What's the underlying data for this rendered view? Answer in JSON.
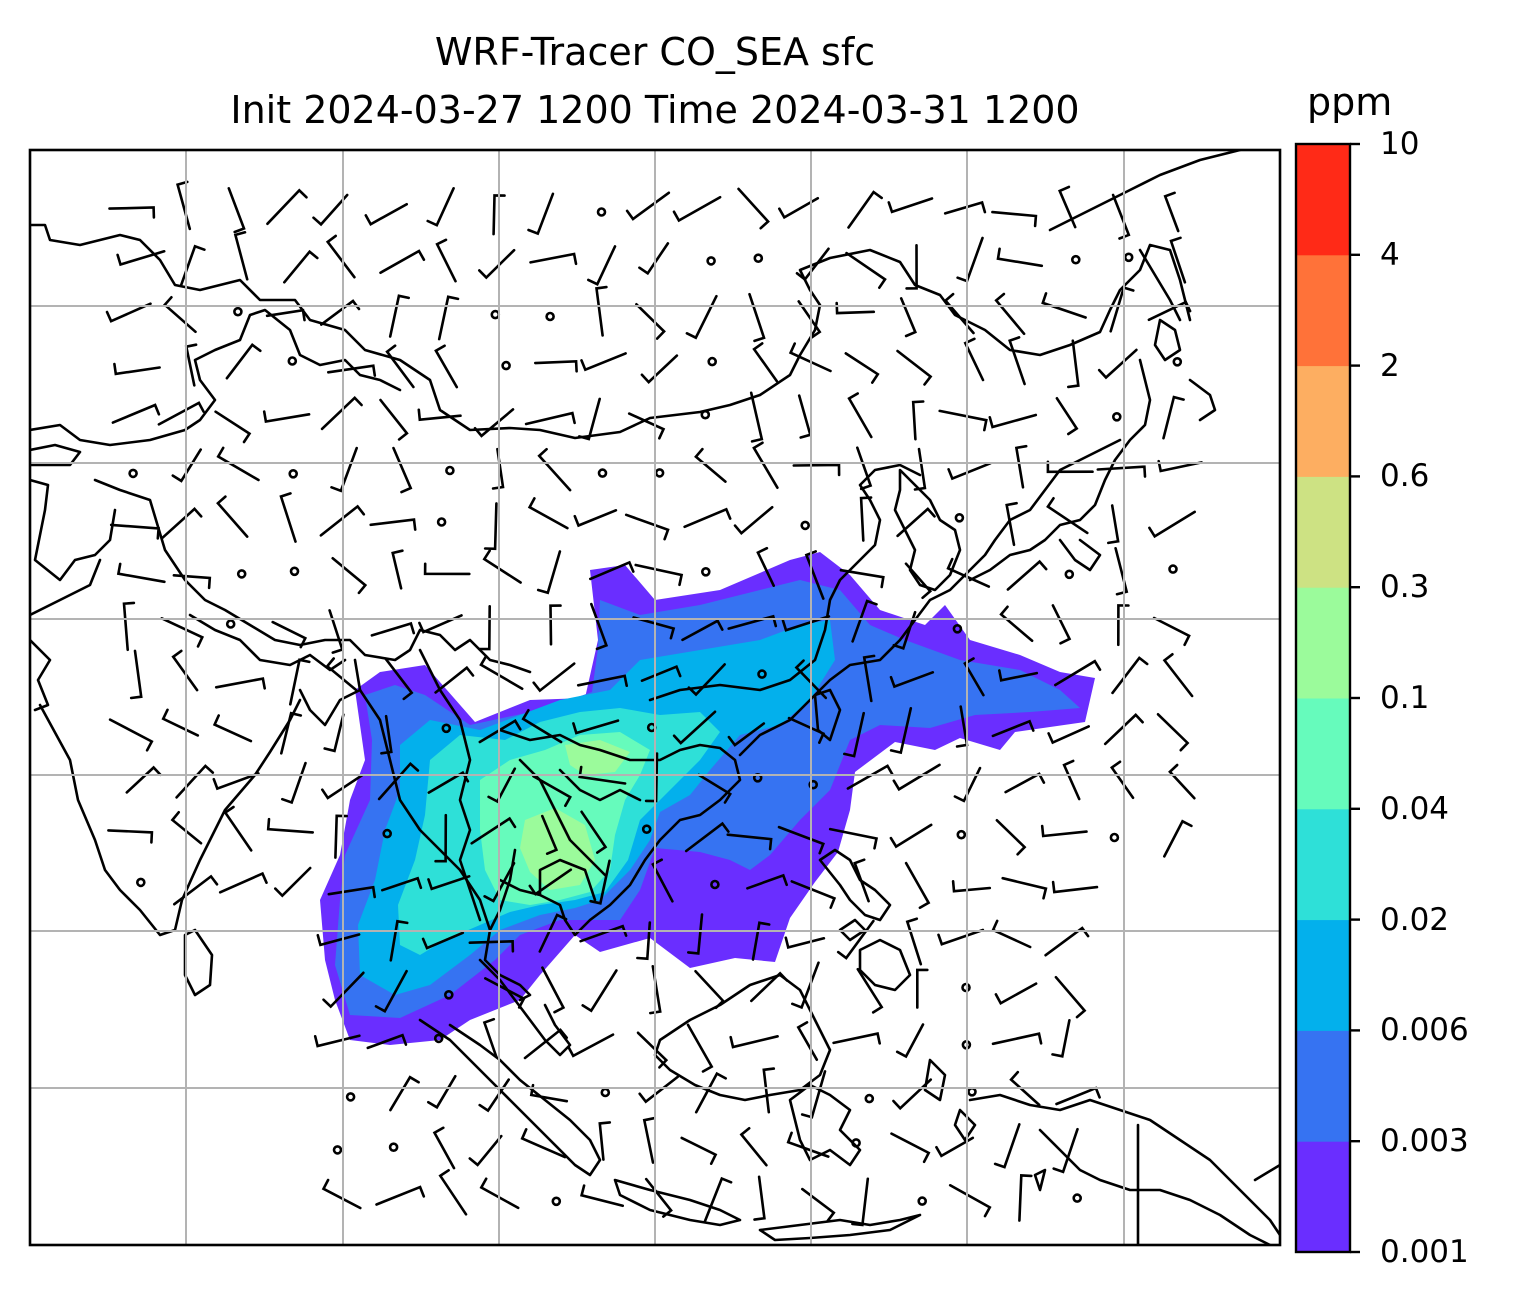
{
  "title_line1": "WRF-Tracer CO_SEA sfc",
  "title_line2": "Init 2024-03-27 1200 Time 2024-03-31 1200",
  "colorbar": {
    "label": "ppm",
    "ticks": [
      "0.001",
      "0.003",
      "0.006",
      "0.02",
      "0.04",
      "0.1",
      "0.3",
      "0.6",
      "2",
      "4",
      "10"
    ],
    "colors": [
      "#6a2eff",
      "#3673f2",
      "#03b0ec",
      "#2ee0d8",
      "#66fbbc",
      "#9bfb9b",
      "#cde283",
      "#fdae61",
      "#ff7239",
      "#ff2a17"
    ]
  },
  "colors": {
    "gridline": "#b3b3b3",
    "coastline": "#000000",
    "wind_barb": "#000000"
  }
}
